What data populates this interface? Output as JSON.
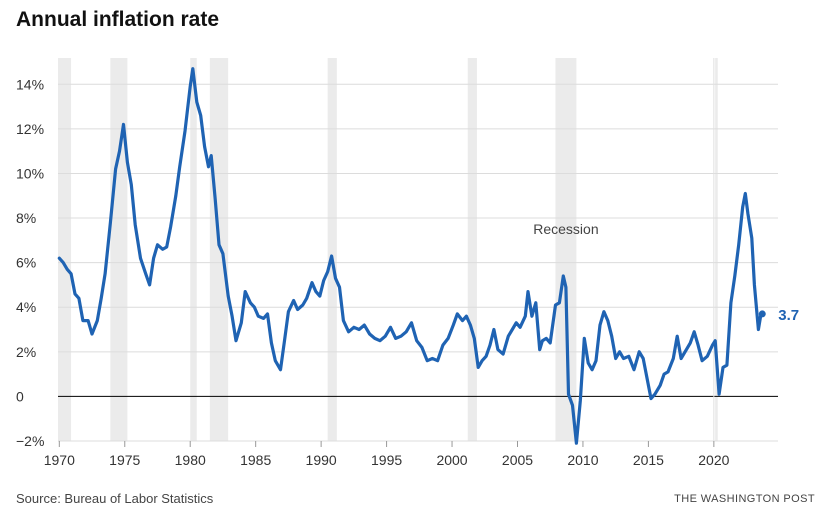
{
  "title": "Annual inflation rate",
  "source": "Source: Bureau of Labor Statistics",
  "credit": "THE WASHINGTON POST",
  "chart_data": {
    "type": "line",
    "title": "Annual inflation rate",
    "xlabel": "",
    "ylabel": "",
    "xlim": [
      1969.9,
      2024.9
    ],
    "ylim": [
      -2,
      15
    ],
    "grid": true,
    "line_color": "#1f63b3",
    "recession_color": "#ebebeb",
    "x_ticks": [
      1970,
      1975,
      1980,
      1985,
      1990,
      1995,
      2000,
      2005,
      2010,
      2015,
      2020
    ],
    "x_tick_labels": [
      "1970",
      "1975",
      "1980",
      "1985",
      "1990",
      "1995",
      "2000",
      "2005",
      "2010",
      "2015",
      "2020"
    ],
    "y_ticks": [
      -2,
      0,
      2,
      4,
      6,
      8,
      10,
      12,
      14
    ],
    "y_tick_labels": [
      "−2%",
      "0",
      "2%",
      "4%",
      "6%",
      "8%",
      "10%",
      "12%",
      "14%"
    ],
    "recessions": [
      [
        1969.9,
        1970.9
      ],
      [
        1973.9,
        1975.2
      ],
      [
        1980.0,
        1980.5
      ],
      [
        1981.5,
        1982.9
      ],
      [
        1990.5,
        1991.2
      ],
      [
        2001.2,
        2001.9
      ],
      [
        2007.9,
        2009.5
      ],
      [
        2020.1,
        2020.3
      ]
    ],
    "recession_label": "Recession",
    "end_value_label": "3.7",
    "series": [
      {
        "values": [
          [
            1970.0,
            6.2
          ],
          [
            1970.3,
            6.0
          ],
          [
            1970.6,
            5.7
          ],
          [
            1970.9,
            5.5
          ],
          [
            1971.2,
            4.6
          ],
          [
            1971.5,
            4.4
          ],
          [
            1971.8,
            3.4
          ],
          [
            1972.2,
            3.4
          ],
          [
            1972.5,
            2.8
          ],
          [
            1972.9,
            3.4
          ],
          [
            1973.2,
            4.4
          ],
          [
            1973.5,
            5.5
          ],
          [
            1973.9,
            7.8
          ],
          [
            1974.3,
            10.2
          ],
          [
            1974.6,
            11.0
          ],
          [
            1974.9,
            12.2
          ],
          [
            1975.2,
            10.5
          ],
          [
            1975.5,
            9.5
          ],
          [
            1975.8,
            7.7
          ],
          [
            1976.2,
            6.2
          ],
          [
            1976.6,
            5.5
          ],
          [
            1976.9,
            5.0
          ],
          [
            1977.2,
            6.2
          ],
          [
            1977.5,
            6.8
          ],
          [
            1977.9,
            6.6
          ],
          [
            1978.2,
            6.7
          ],
          [
            1978.5,
            7.6
          ],
          [
            1978.9,
            9.0
          ],
          [
            1979.2,
            10.3
          ],
          [
            1979.6,
            11.9
          ],
          [
            1980.0,
            13.9
          ],
          [
            1980.2,
            14.7
          ],
          [
            1980.5,
            13.2
          ],
          [
            1980.8,
            12.6
          ],
          [
            1981.1,
            11.2
          ],
          [
            1981.4,
            10.3
          ],
          [
            1981.6,
            10.8
          ],
          [
            1981.9,
            8.9
          ],
          [
            1982.2,
            6.8
          ],
          [
            1982.5,
            6.4
          ],
          [
            1982.9,
            4.5
          ],
          [
            1983.2,
            3.6
          ],
          [
            1983.5,
            2.5
          ],
          [
            1983.9,
            3.3
          ],
          [
            1984.2,
            4.7
          ],
          [
            1984.6,
            4.2
          ],
          [
            1984.9,
            4.0
          ],
          [
            1985.2,
            3.6
          ],
          [
            1985.6,
            3.5
          ],
          [
            1985.9,
            3.7
          ],
          [
            1986.2,
            2.4
          ],
          [
            1986.5,
            1.6
          ],
          [
            1986.9,
            1.2
          ],
          [
            1987.2,
            2.5
          ],
          [
            1987.5,
            3.8
          ],
          [
            1987.9,
            4.3
          ],
          [
            1988.2,
            3.9
          ],
          [
            1988.6,
            4.1
          ],
          [
            1988.9,
            4.4
          ],
          [
            1989.3,
            5.1
          ],
          [
            1989.6,
            4.7
          ],
          [
            1989.9,
            4.5
          ],
          [
            1990.2,
            5.2
          ],
          [
            1990.5,
            5.6
          ],
          [
            1990.8,
            6.3
          ],
          [
            1991.1,
            5.3
          ],
          [
            1991.4,
            4.9
          ],
          [
            1991.7,
            3.4
          ],
          [
            1992.1,
            2.9
          ],
          [
            1992.5,
            3.1
          ],
          [
            1992.9,
            3.0
          ],
          [
            1993.3,
            3.2
          ],
          [
            1993.7,
            2.8
          ],
          [
            1994.1,
            2.6
          ],
          [
            1994.5,
            2.5
          ],
          [
            1994.9,
            2.7
          ],
          [
            1995.3,
            3.1
          ],
          [
            1995.7,
            2.6
          ],
          [
            1996.1,
            2.7
          ],
          [
            1996.5,
            2.9
          ],
          [
            1996.9,
            3.3
          ],
          [
            1997.3,
            2.5
          ],
          [
            1997.7,
            2.2
          ],
          [
            1998.1,
            1.6
          ],
          [
            1998.5,
            1.7
          ],
          [
            1998.9,
            1.6
          ],
          [
            1999.3,
            2.3
          ],
          [
            1999.7,
            2.6
          ],
          [
            2000.1,
            3.2
          ],
          [
            2000.4,
            3.7
          ],
          [
            2000.8,
            3.4
          ],
          [
            2001.1,
            3.6
          ],
          [
            2001.4,
            3.2
          ],
          [
            2001.7,
            2.6
          ],
          [
            2002.0,
            1.3
          ],
          [
            2002.3,
            1.6
          ],
          [
            2002.6,
            1.8
          ],
          [
            2002.9,
            2.3
          ],
          [
            2003.2,
            3.0
          ],
          [
            2003.5,
            2.1
          ],
          [
            2003.9,
            1.9
          ],
          [
            2004.3,
            2.7
          ],
          [
            2004.6,
            3.0
          ],
          [
            2004.9,
            3.3
          ],
          [
            2005.2,
            3.1
          ],
          [
            2005.6,
            3.6
          ],
          [
            2005.8,
            4.7
          ],
          [
            2006.1,
            3.6
          ],
          [
            2006.4,
            4.2
          ],
          [
            2006.7,
            2.1
          ],
          [
            2006.9,
            2.5
          ],
          [
            2007.2,
            2.6
          ],
          [
            2007.5,
            2.4
          ],
          [
            2007.9,
            4.1
          ],
          [
            2008.2,
            4.2
          ],
          [
            2008.5,
            5.4
          ],
          [
            2008.7,
            4.9
          ],
          [
            2008.9,
            0.1
          ],
          [
            2009.2,
            -0.4
          ],
          [
            2009.5,
            -2.1
          ],
          [
            2009.8,
            -0.2
          ],
          [
            2010.1,
            2.6
          ],
          [
            2010.4,
            1.5
          ],
          [
            2010.7,
            1.2
          ],
          [
            2011.0,
            1.6
          ],
          [
            2011.3,
            3.2
          ],
          [
            2011.6,
            3.8
          ],
          [
            2011.9,
            3.4
          ],
          [
            2012.2,
            2.7
          ],
          [
            2012.5,
            1.7
          ],
          [
            2012.8,
            2.0
          ],
          [
            2013.1,
            1.7
          ],
          [
            2013.5,
            1.8
          ],
          [
            2013.9,
            1.2
          ],
          [
            2014.3,
            2.0
          ],
          [
            2014.6,
            1.7
          ],
          [
            2014.9,
            0.8
          ],
          [
            2015.2,
            -0.1
          ],
          [
            2015.5,
            0.1
          ],
          [
            2015.9,
            0.5
          ],
          [
            2016.2,
            1.0
          ],
          [
            2016.5,
            1.1
          ],
          [
            2016.9,
            1.7
          ],
          [
            2017.2,
            2.7
          ],
          [
            2017.5,
            1.7
          ],
          [
            2017.9,
            2.1
          ],
          [
            2018.2,
            2.4
          ],
          [
            2018.5,
            2.9
          ],
          [
            2018.8,
            2.3
          ],
          [
            2019.1,
            1.6
          ],
          [
            2019.5,
            1.8
          ],
          [
            2019.9,
            2.3
          ],
          [
            2020.1,
            2.5
          ],
          [
            2020.4,
            0.1
          ],
          [
            2020.7,
            1.3
          ],
          [
            2021.0,
            1.4
          ],
          [
            2021.3,
            4.2
          ],
          [
            2021.6,
            5.4
          ],
          [
            2021.9,
            6.8
          ],
          [
            2022.2,
            8.5
          ],
          [
            2022.4,
            9.1
          ],
          [
            2022.6,
            8.2
          ],
          [
            2022.9,
            7.1
          ],
          [
            2023.1,
            5.0
          ],
          [
            2023.4,
            3.0
          ],
          [
            2023.6,
            3.7
          ],
          [
            2023.7,
            3.7
          ]
        ]
      }
    ]
  }
}
